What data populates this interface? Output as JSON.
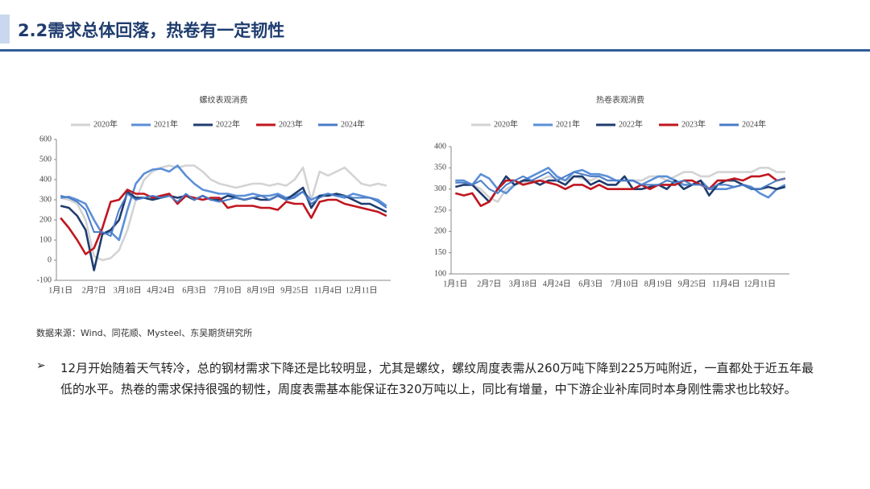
{
  "header": {
    "title": "2.2需求总体回落，热卷有一定韧性"
  },
  "chart_data": [
    {
      "type": "line",
      "title": "螺纹表观消费",
      "categories": [
        "1月1日",
        null,
        null,
        null,
        "2月7日",
        null,
        null,
        null,
        "3月18日",
        null,
        null,
        null,
        "4月24日",
        null,
        null,
        null,
        "6月3日",
        null,
        null,
        null,
        "7月10日",
        null,
        null,
        null,
        "8月19日",
        null,
        null,
        null,
        "9月25日",
        null,
        null,
        null,
        "11月4日",
        null,
        null,
        null,
        "12月11日",
        null,
        null,
        null
      ],
      "ylim": [
        -100,
        600
      ],
      "yticks": [
        -100,
        0,
        100,
        200,
        300,
        400,
        500,
        600
      ],
      "grid": false,
      "series": [
        {
          "name": "2020年",
          "color": "#d3d3d3",
          "values": [
            310,
            300,
            280,
            200,
            20,
            0,
            10,
            50,
            150,
            300,
            400,
            440,
            460,
            470,
            460,
            470,
            470,
            440,
            400,
            380,
            370,
            360,
            370,
            380,
            380,
            370,
            380,
            370,
            400,
            460,
            300,
            440,
            420,
            440,
            460,
            420,
            380,
            370,
            380,
            370
          ]
        },
        {
          "name": "2021年",
          "color": "#5b8fd8",
          "values": [
            310,
            315,
            300,
            280,
            200,
            130,
            140,
            100,
            250,
            380,
            430,
            450,
            455,
            440,
            470,
            420,
            380,
            350,
            340,
            330,
            330,
            320,
            320,
            330,
            320,
            320,
            330,
            310,
            320,
            340,
            300,
            320,
            330,
            320,
            310,
            330,
            320,
            310,
            300,
            270
          ]
        },
        {
          "name": "2022年",
          "color": "#1f3c6e",
          "values": [
            270,
            260,
            220,
            150,
            -50,
            130,
            150,
            200,
            340,
            310,
            310,
            300,
            310,
            320,
            310,
            320,
            300,
            320,
            300,
            300,
            320,
            310,
            300,
            310,
            300,
            300,
            320,
            300,
            330,
            360,
            260,
            320,
            320,
            330,
            320,
            300,
            280,
            280,
            260,
            240
          ]
        },
        {
          "name": "2023年",
          "color": "#c0161e",
          "values": [
            210,
            160,
            100,
            30,
            60,
            160,
            290,
            300,
            350,
            330,
            330,
            310,
            320,
            330,
            280,
            320,
            310,
            300,
            310,
            310,
            260,
            270,
            270,
            270,
            260,
            260,
            250,
            290,
            280,
            280,
            210,
            290,
            300,
            300,
            280,
            270,
            260,
            250,
            240,
            220
          ]
        },
        {
          "name": "2024年",
          "color": "#4a7cc8",
          "values": [
            320,
            310,
            290,
            250,
            140,
            140,
            120,
            250,
            330,
            300,
            310,
            320,
            310,
            320,
            290,
            330,
            300,
            320,
            300,
            290,
            300,
            310,
            300,
            310,
            320,
            300,
            320,
            300,
            310,
            340,
            280,
            310,
            330,
            320,
            320,
            310,
            310,
            310,
            290,
            260
          ]
        }
      ]
    },
    {
      "type": "line",
      "title": "热卷表观消费",
      "categories": [
        "1月1日",
        null,
        null,
        null,
        "2月7日",
        null,
        null,
        null,
        "3月18日",
        null,
        null,
        null,
        "4月24日",
        null,
        null,
        null,
        "6月3日",
        null,
        null,
        null,
        "7月10日",
        null,
        null,
        null,
        "8月19日",
        null,
        null,
        null,
        "9月25日",
        null,
        null,
        null,
        "11月4日",
        null,
        null,
        null,
        "12月11日",
        null,
        null,
        null
      ],
      "ylim": [
        100,
        400
      ],
      "yticks": [
        100,
        150,
        200,
        250,
        300,
        350,
        400
      ],
      "grid": false,
      "series": [
        {
          "name": "2020年",
          "color": "#d3d3d3",
          "values": [
            320,
            320,
            310,
            300,
            280,
            270,
            300,
            310,
            315,
            320,
            320,
            330,
            325,
            320,
            330,
            325,
            320,
            330,
            320,
            320,
            320,
            320,
            320,
            330,
            330,
            320,
            330,
            340,
            340,
            330,
            330,
            340,
            340,
            340,
            340,
            340,
            350,
            350,
            340,
            340
          ]
        },
        {
          "name": "2021年",
          "color": "#5b8fd8",
          "values": [
            320,
            320,
            310,
            335,
            325,
            300,
            290,
            310,
            320,
            330,
            340,
            350,
            330,
            320,
            340,
            345,
            335,
            335,
            330,
            320,
            320,
            320,
            310,
            320,
            330,
            330,
            320,
            310,
            310,
            320,
            300,
            300,
            300,
            305,
            310,
            305,
            290,
            280,
            300,
            310
          ]
        },
        {
          "name": "2022年",
          "color": "#1f3c6e",
          "values": [
            305,
            310,
            310,
            290,
            270,
            300,
            330,
            310,
            320,
            320,
            310,
            320,
            320,
            310,
            330,
            330,
            310,
            320,
            310,
            310,
            330,
            300,
            300,
            305,
            310,
            300,
            320,
            300,
            310,
            320,
            285,
            310,
            320,
            320,
            310,
            300,
            300,
            305,
            300,
            305
          ]
        },
        {
          "name": "2023年",
          "color": "#c0161e",
          "values": [
            290,
            285,
            290,
            260,
            270,
            300,
            320,
            320,
            310,
            315,
            320,
            315,
            310,
            300,
            310,
            310,
            300,
            310,
            300,
            300,
            300,
            300,
            310,
            300,
            310,
            310,
            310,
            320,
            320,
            310,
            300,
            320,
            320,
            325,
            320,
            330,
            330,
            335,
            320,
            325
          ]
        },
        {
          "name": "2024年",
          "color": "#4a7cc8",
          "values": [
            315,
            315,
            310,
            320,
            300,
            290,
            310,
            320,
            330,
            320,
            330,
            340,
            320,
            330,
            340,
            335,
            330,
            330,
            320,
            320,
            320,
            320,
            310,
            310,
            310,
            320,
            315,
            320,
            310,
            310,
            300,
            310,
            310,
            305,
            310,
            300,
            300,
            310,
            320,
            325
          ]
        }
      ]
    }
  ],
  "source": "数据来源：Wind、同花顺、Mysteel、东吴期货研究所",
  "bullet": {
    "text": "12月开始随着天气转冷，总的钢材需求下降还是比较明显，尤其是螺纹，螺纹周度表需从260万吨下降到225万吨附近，一直都处于近五年最低的水平。热卷的需求保持很强的韧性，周度表需基本能保证在320万吨以上，同比有增量，中下游企业补库同时本身刚性需求也比较好。"
  }
}
